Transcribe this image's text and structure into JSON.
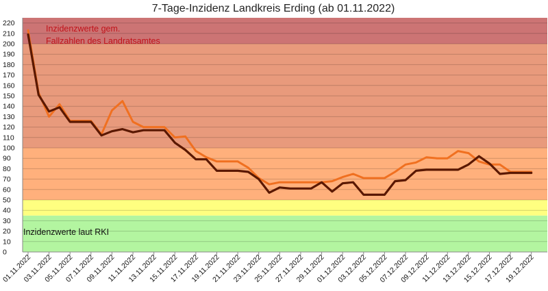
{
  "chart_data": {
    "type": "line",
    "title": "7-Tage-Inzidenz Landkreis Erding (ab 01.11.2022)",
    "xlabel": "",
    "ylabel": "",
    "ylim": [
      0,
      225
    ],
    "yticks": [
      0,
      10,
      20,
      30,
      40,
      50,
      60,
      70,
      80,
      90,
      100,
      110,
      120,
      130,
      140,
      150,
      160,
      170,
      180,
      190,
      200,
      210,
      220
    ],
    "grid": true,
    "legend": "none",
    "x_dates": [
      "01.11.2022",
      "02.11.2022",
      "03.11.2022",
      "04.11.2022",
      "05.11.2022",
      "06.11.2022",
      "07.11.2022",
      "08.11.2022",
      "09.11.2022",
      "10.11.2022",
      "11.11.2022",
      "12.11.2022",
      "13.11.2022",
      "14.11.2022",
      "15.11.2022",
      "16.11.2022",
      "17.11.2022",
      "18.11.2022",
      "19.11.2022",
      "20.11.2022",
      "21.11.2022",
      "22.11.2022",
      "23.11.2022",
      "24.11.2022",
      "25.11.2022",
      "26.11.2022",
      "27.11.2022",
      "28.11.2022",
      "29.11.2022",
      "30.11.2022",
      "01.12.2022",
      "02.12.2022",
      "03.12.2022",
      "04.12.2022",
      "05.12.2022",
      "06.12.2022",
      "07.12.2022",
      "08.12.2022",
      "09.12.2022",
      "10.12.2022",
      "11.12.2022",
      "12.12.2022",
      "13.12.2022",
      "14.12.2022",
      "15.12.2022",
      "16.12.2022",
      "17.12.2022",
      "18.12.2022",
      "19.12.2022",
      "20.12.2022"
    ],
    "x_tick_labels": [
      "01.11.2022",
      "03.11.2022",
      "05.11.2022",
      "07.11.2022",
      "09.11.2022",
      "11.11.2022",
      "13.11.2022",
      "15.11.2022",
      "17.11.2022",
      "19.11.2022",
      "21.11.2022",
      "23.11.2022",
      "25.11.2022",
      "27.11.2022",
      "29.11.2022",
      "01.12.2022",
      "03.12.2022",
      "05.12.2022",
      "07.12.2022",
      "09.12.2022",
      "11.12.2022",
      "13.12.2022",
      "15.12.2022",
      "17.12.2022",
      "19.12.2022"
    ],
    "bands": [
      {
        "from": 0,
        "to": 35,
        "color": "#b3f5a0"
      },
      {
        "from": 35,
        "to": 50,
        "color": "#ffff80"
      },
      {
        "from": 50,
        "to": 100,
        "color": "#ffb07c"
      },
      {
        "from": 100,
        "to": 200,
        "color": "#e89a7c"
      },
      {
        "from": 200,
        "to": 225,
        "color": "#cc7474"
      }
    ],
    "series": [
      {
        "name": "",
        "color": "#f07020",
        "values": [
          213,
          153,
          130,
          142,
          126,
          126,
          126,
          113,
          136,
          145,
          125,
          120,
          120,
          120,
          110,
          111,
          97,
          91,
          87,
          87,
          87,
          81,
          71,
          65,
          67,
          67,
          67,
          67,
          67,
          68,
          72,
          75,
          71,
          71,
          71,
          77,
          84,
          86,
          91,
          90,
          90,
          97,
          95,
          87,
          84,
          84,
          77,
          77,
          77
        ]
      },
      {
        "name": "",
        "color": "#5a1800",
        "values": [
          209,
          151,
          135,
          139,
          125,
          125,
          125,
          112,
          116,
          118,
          115,
          117,
          117,
          117,
          105,
          98,
          89,
          89,
          78,
          78,
          78,
          77,
          70,
          57,
          62,
          61,
          61,
          61,
          67,
          58,
          66,
          67,
          55,
          55,
          55,
          68,
          69,
          78,
          79,
          79,
          79,
          79,
          84,
          92,
          85,
          75,
          76,
          76,
          76
        ]
      }
    ],
    "annotations": [
      {
        "text_lines": [
          "Inzidenzwerte gem.",
          "Fallzahlen des Landratsamtes"
        ],
        "color": "#c0131a"
      },
      {
        "text_lines": [
          "Inzidenzwerte laut RKI"
        ],
        "color": "#111111"
      }
    ]
  }
}
